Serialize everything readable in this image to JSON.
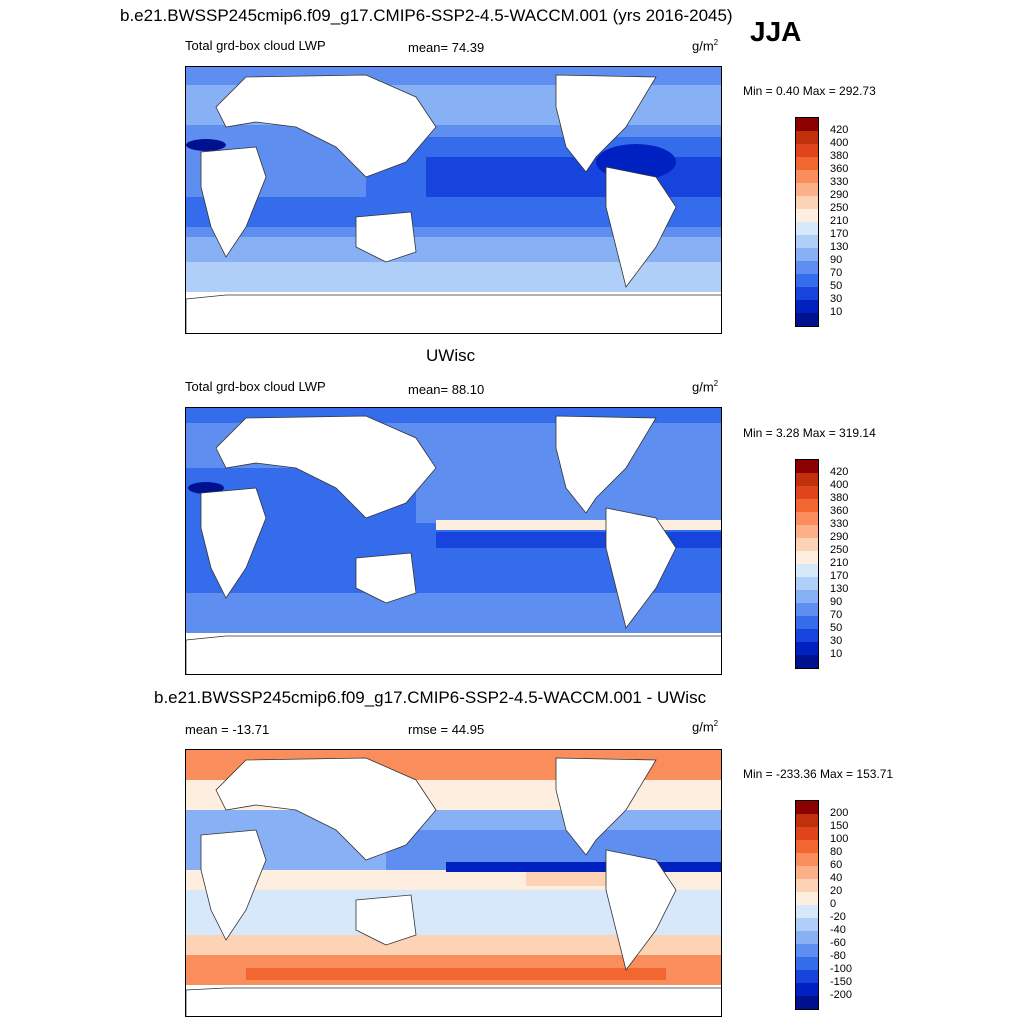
{
  "header": {
    "title": "b.e21.BWSSP245cmip6.f09_g17.CMIP6-SSP2-4.5-WACCM.001 (yrs 2016-2045)",
    "season": "JJA"
  },
  "panels": [
    {
      "variable": "Total grd-box cloud LWP",
      "stat_label": "mean=  74.39",
      "units": "g/m",
      "units_sup": "2",
      "range": "Min =   0.40 Max = 292.73",
      "colorbar_labels": [
        "420",
        "400",
        "380",
        "360",
        "330",
        "290",
        "250",
        "210",
        "170",
        "130",
        "90",
        "70",
        "50",
        "30",
        "10"
      ]
    },
    {
      "title": "UWisc",
      "variable": "Total grd-box cloud LWP",
      "stat_label": "mean=  88.10",
      "units": "g/m",
      "units_sup": "2",
      "range": "Min =   3.28 Max = 319.14",
      "colorbar_labels": [
        "420",
        "400",
        "380",
        "360",
        "330",
        "290",
        "250",
        "210",
        "170",
        "130",
        "90",
        "70",
        "50",
        "30",
        "10"
      ]
    },
    {
      "title": "b.e21.BWSSP245cmip6.f09_g17.CMIP6-SSP2-4.5-WACCM.001 - UWisc",
      "stat_left": "mean = -13.71",
      "stat_label": "rmse =  44.95",
      "units": "g/m",
      "units_sup": "2",
      "range": "Min = -233.36 Max = 153.71",
      "colorbar_labels": [
        "200",
        "150",
        "100",
        "80",
        "60",
        "40",
        "20",
        "0",
        "-20",
        "-40",
        "-60",
        "-80",
        "-100",
        "-150",
        "-200"
      ]
    }
  ],
  "colors": {
    "abs_scale": [
      "#8b0000",
      "#c0300b",
      "#e0441c",
      "#f2672f",
      "#f98d5c",
      "#fbb088",
      "#fdd3b5",
      "#fdeee0",
      "#d7e8fb",
      "#b0cff8",
      "#88b1f5",
      "#5e8ff0",
      "#356cec",
      "#1644dd",
      "#0021c2",
      "#00118f"
    ],
    "diff_scale": [
      "#8b0000",
      "#c0300b",
      "#e0441c",
      "#f2672f",
      "#f98d5c",
      "#fbb088",
      "#fdd3b5",
      "#fdeee0",
      "#d7e8fb",
      "#b0cff8",
      "#88b1f5",
      "#5e8ff0",
      "#356cec",
      "#1644dd",
      "#0021c2",
      "#00118f"
    ]
  }
}
